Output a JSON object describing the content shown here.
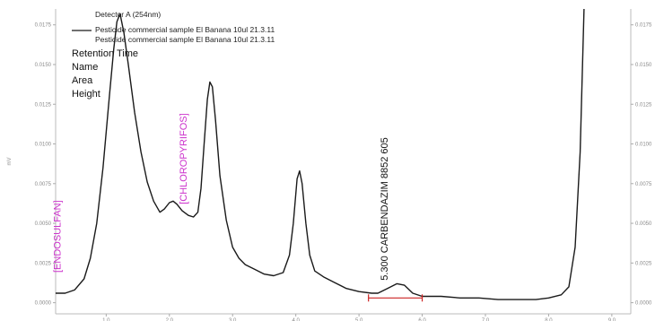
{
  "chart_data": {
    "type": "line",
    "title": "",
    "ylabel": "mV",
    "xlabel": "",
    "detector": "Detector A (254nm)",
    "legend": [
      "Pesticide commercial sample El Banana 10ul 21.3.11",
      "Pesticide commercial sample El Banana 10ul 21.3.11"
    ],
    "meta_labels": [
      "Retention Time",
      "Name",
      "Area",
      "Height"
    ],
    "x_ticks": [
      "1.0",
      "2.0",
      "3.0",
      "4.0",
      "5.0",
      "6.0",
      "7.0",
      "8.0",
      "9.0"
    ],
    "y_ticks_left": [
      "0.0000",
      "0.0025",
      "0.0050",
      "0.0075",
      "0.0100",
      "0.0125",
      "0.0150",
      "0.0175"
    ],
    "y_ticks_right": [
      "0.0000",
      "0.0025",
      "0.0050",
      "0.0075",
      "0.0100",
      "0.0125",
      "0.0150",
      "0.0175"
    ],
    "xlim": [
      0.2,
      9.3
    ],
    "ylim": [
      -0.0007,
      0.0185
    ],
    "grid": false,
    "legend_position": "top-left",
    "series": [
      {
        "name": "Pesticide commercial sample El Banana 10ul 21.3.11",
        "color": "#1a1a1a",
        "points": [
          [
            0.2,
            0.0006
          ],
          [
            0.35,
            0.0006
          ],
          [
            0.5,
            0.0008
          ],
          [
            0.65,
            0.0015
          ],
          [
            0.75,
            0.0028
          ],
          [
            0.85,
            0.005
          ],
          [
            0.95,
            0.0085
          ],
          [
            1.05,
            0.013
          ],
          [
            1.12,
            0.016
          ],
          [
            1.17,
            0.0177
          ],
          [
            1.22,
            0.0182
          ],
          [
            1.28,
            0.017
          ],
          [
            1.35,
            0.015
          ],
          [
            1.45,
            0.012
          ],
          [
            1.55,
            0.0095
          ],
          [
            1.65,
            0.0076
          ],
          [
            1.75,
            0.0064
          ],
          [
            1.85,
            0.0057
          ],
          [
            1.92,
            0.0059
          ],
          [
            2.0,
            0.0063
          ],
          [
            2.06,
            0.0064
          ],
          [
            2.12,
            0.0062
          ],
          [
            2.2,
            0.0058
          ],
          [
            2.3,
            0.0055
          ],
          [
            2.38,
            0.0054
          ],
          [
            2.45,
            0.0057
          ],
          [
            2.5,
            0.0072
          ],
          [
            2.55,
            0.01
          ],
          [
            2.6,
            0.0128
          ],
          [
            2.64,
            0.0139
          ],
          [
            2.68,
            0.0136
          ],
          [
            2.73,
            0.0115
          ],
          [
            2.8,
            0.008
          ],
          [
            2.9,
            0.0052
          ],
          [
            3.0,
            0.0035
          ],
          [
            3.1,
            0.0028
          ],
          [
            3.2,
            0.0024
          ],
          [
            3.35,
            0.0021
          ],
          [
            3.5,
            0.0018
          ],
          [
            3.65,
            0.0017
          ],
          [
            3.8,
            0.0019
          ],
          [
            3.9,
            0.003
          ],
          [
            3.96,
            0.005
          ],
          [
            4.02,
            0.0078
          ],
          [
            4.06,
            0.0083
          ],
          [
            4.1,
            0.0075
          ],
          [
            4.16,
            0.005
          ],
          [
            4.22,
            0.003
          ],
          [
            4.3,
            0.002
          ],
          [
            4.45,
            0.0016
          ],
          [
            4.6,
            0.0013
          ],
          [
            4.8,
            0.0009
          ],
          [
            5.0,
            0.0007
          ],
          [
            5.2,
            0.0006
          ],
          [
            5.3,
            0.0006
          ],
          [
            5.45,
            0.0009
          ],
          [
            5.6,
            0.0012
          ],
          [
            5.72,
            0.0011
          ],
          [
            5.85,
            0.0006
          ],
          [
            6.0,
            0.0004
          ],
          [
            6.3,
            0.0004
          ],
          [
            6.6,
            0.0003
          ],
          [
            6.9,
            0.0003
          ],
          [
            7.2,
            0.0002
          ],
          [
            7.5,
            0.0002
          ],
          [
            7.8,
            0.0002
          ],
          [
            8.0,
            0.0003
          ],
          [
            8.2,
            0.0005
          ],
          [
            8.32,
            0.001
          ],
          [
            8.42,
            0.0035
          ],
          [
            8.5,
            0.0095
          ],
          [
            8.56,
            0.0185
          ]
        ]
      }
    ],
    "baseline": {
      "color": "#cc2222",
      "x": [
        5.15,
        6.0
      ],
      "y": [
        0.0003,
        0.0003
      ]
    },
    "peak_labels": [
      {
        "text": "[ENDOSULFAN]",
        "x": 0.28,
        "y": 0.0019,
        "color": "#cc33cc"
      },
      {
        "text": "[CHLOROPYRIFOS]",
        "x": 2.27,
        "y": 0.0062,
        "color": "#cc33cc"
      },
      {
        "text": "5.300  CARBENDAZIM  8852  605",
        "x": 5.45,
        "y": 0.0014,
        "color": "#111111"
      }
    ]
  }
}
